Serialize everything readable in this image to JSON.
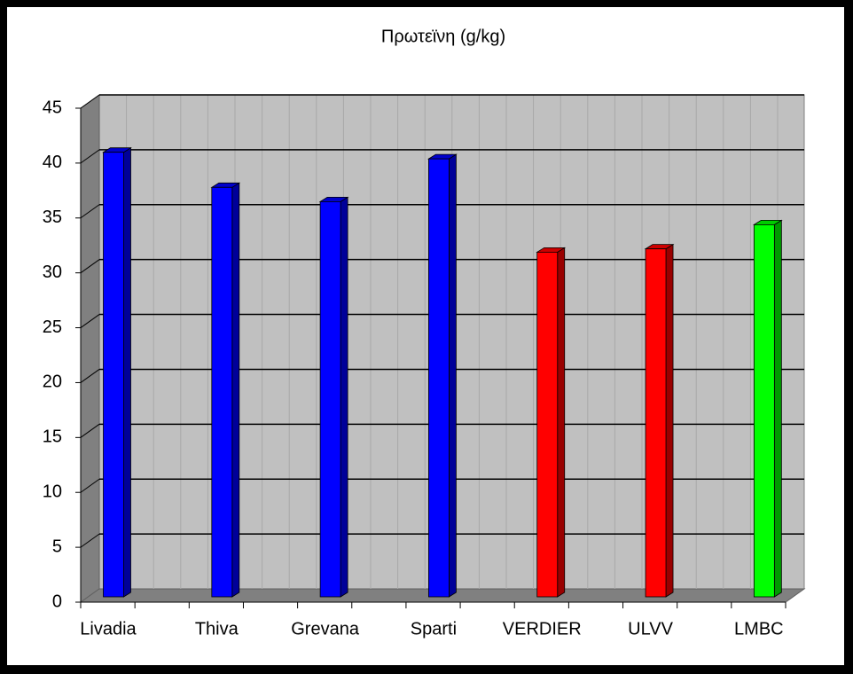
{
  "chart_data": {
    "type": "bar3d",
    "title": "Πρωτεϊνη  (g/kg)",
    "categories": [
      "Livadia",
      "Thiva",
      "Grevana",
      "Sparti",
      "VERDIER",
      "ULVV",
      "LMBC"
    ],
    "values": [
      40.5,
      37.3,
      36,
      39.9,
      31.4,
      31.7,
      33.9
    ],
    "colors": [
      "#0000ff",
      "#0000ff",
      "#0000ff",
      "#0000ff",
      "#ff0000",
      "#ff0000",
      "#00ff00"
    ],
    "ylim": [
      0,
      45
    ],
    "yticks": [
      0,
      5,
      10,
      15,
      20,
      25,
      30,
      35,
      40,
      45
    ],
    "grid": true
  }
}
